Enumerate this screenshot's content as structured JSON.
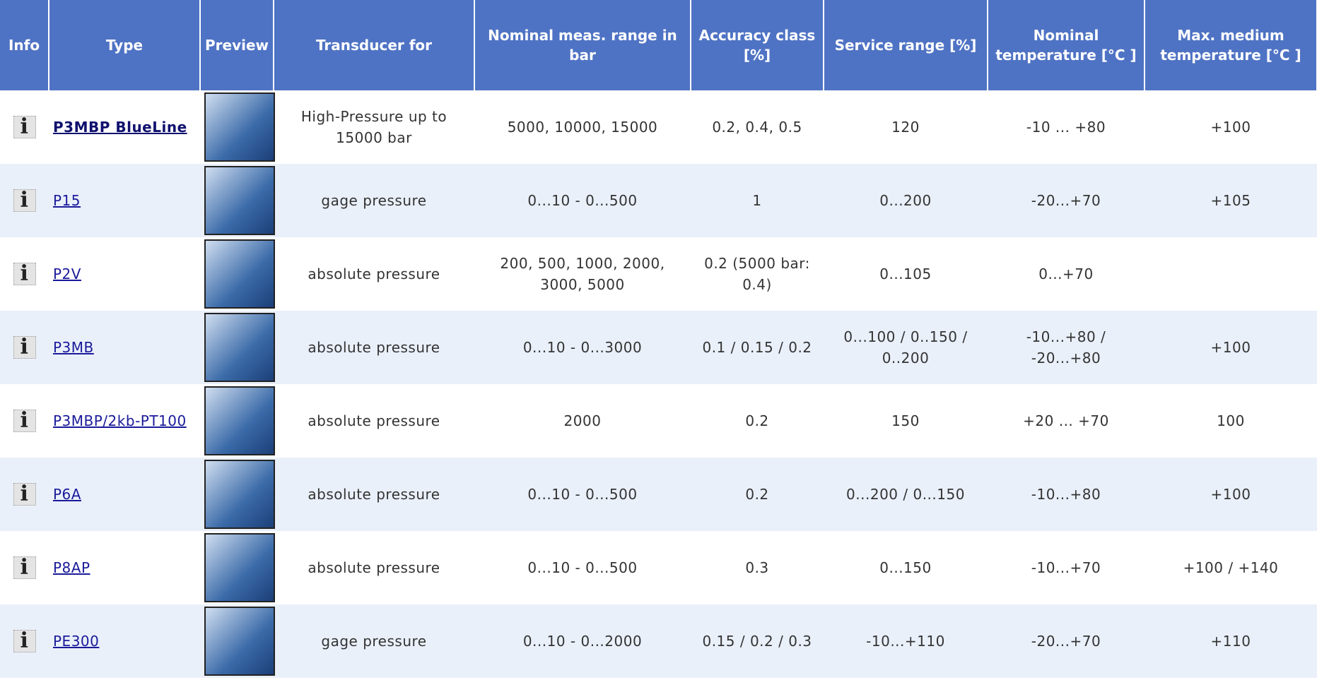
{
  "table": {
    "headers": [
      "Info",
      "Type",
      "Preview",
      "Transducer for",
      "Nominal meas. range in bar",
      "Accuracy class [%]",
      "Service range [%]",
      "Nominal temperature [°C ]",
      "Max. medium temperature [°C ]"
    ],
    "rows": [
      {
        "type": "P3MBP BlueLine",
        "transducer": "High-Pressure up to 15000 bar",
        "range": "5000, 10000, 15000",
        "accuracy": "0.2, 0.4, 0.5",
        "service": "120",
        "nominal_temp": "-10 ... +80",
        "max_temp": "+100"
      },
      {
        "type": "P15",
        "transducer": "gage pressure",
        "range": "0...10 - 0...500",
        "accuracy": "1",
        "service": "0...200",
        "nominal_temp": "-20...+70",
        "max_temp": "+105"
      },
      {
        "type": "P2V",
        "transducer": "absolute pressure",
        "range": "200, 500, 1000, 2000, 3000, 5000",
        "accuracy": "0.2 (5000 bar: 0.4)",
        "service": "0...105",
        "nominal_temp": "0...+70"
      },
      {
        "type": "P3MB",
        "transducer": "absolute pressure",
        "range": "0...10 - 0...3000",
        "accuracy": "0.1 / 0.15 / 0.2",
        "service": "0...100 / 0..150 / 0..200",
        "nominal_temp": "-10...+80 / -20...+80",
        "max_temp": "+100"
      },
      {
        "type": "P3MBP/2kb-PT100",
        "transducer": "absolute pressure",
        "range": "2000",
        "accuracy": "0.2",
        "service": "150",
        "nominal_temp": "+20 ... +70",
        "max_temp": "100"
      },
      {
        "type": "P6A",
        "transducer": "absolute pressure",
        "range": "0...10 - 0...500",
        "accuracy": "0.2",
        "service": "0...200 / 0...150",
        "nominal_temp": "-10...+80",
        "max_temp": "+100"
      },
      {
        "type": "P8AP",
        "transducer": "absolute pressure",
        "range": "0...10 - 0...500",
        "accuracy": "0.3",
        "service": "0...150",
        "nominal_temp": "-10...+70",
        "max_temp": "+100 / +140"
      },
      {
        "type": "PE300",
        "transducer": "gage pressure",
        "range": "0...10 - 0...2000",
        "accuracy": "0.15 / 0.2 / 0.3",
        "service": "-10...+110",
        "nominal_temp": "-20...+70",
        "max_temp": "+110"
      }
    ]
  }
}
